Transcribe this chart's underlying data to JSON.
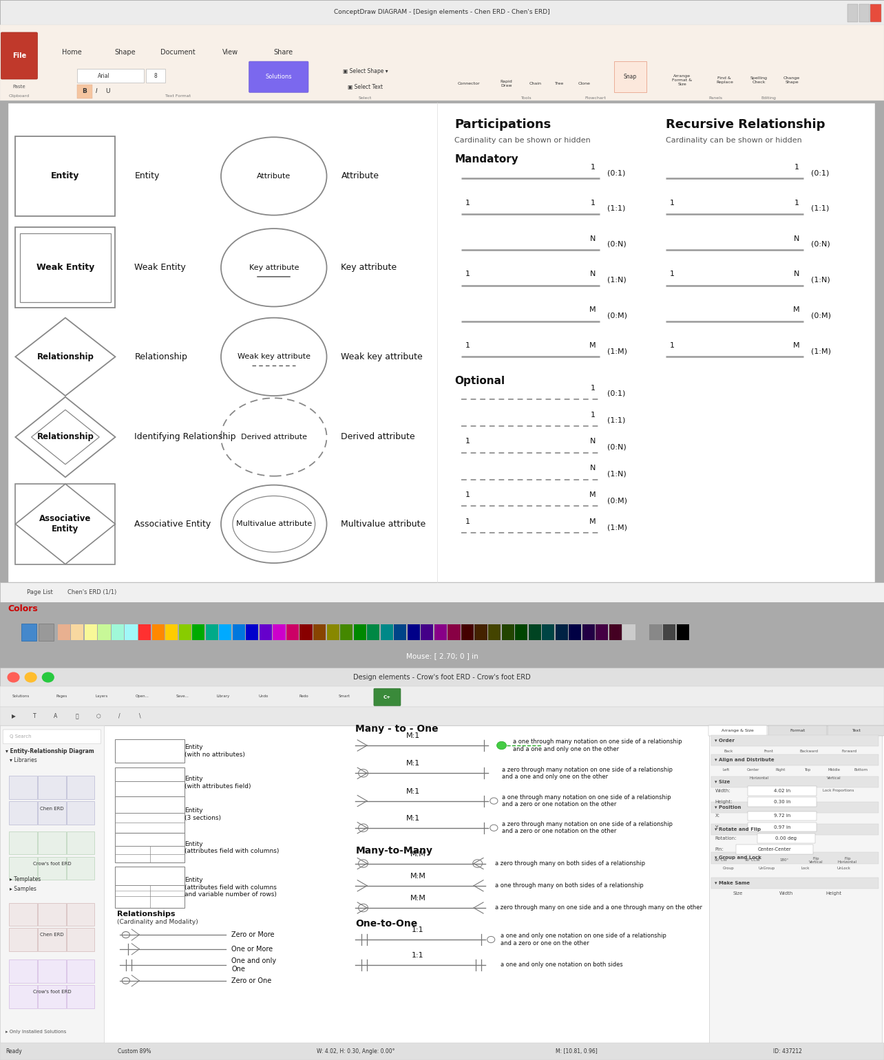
{
  "title_top": "ConceptDraw DIAGRAM - [Design elements - Chen ERD - Chen's ERD]",
  "section1_title": "Participations",
  "section1_subtitle": "Cardinality can be shown or hidden",
  "section2_title": "Recursive Relationship",
  "section2_subtitle": "Cardinality can be shown or hidden",
  "mandatory_label": "Mandatory",
  "optional_label": "Optional",
  "page_label": "Page List",
  "page_name": "Chen's ERD (1/1)",
  "mouse_text": "Mouse: [ 2.70; 0 ] in",
  "colors_label": "Colors",
  "colors_label_color": "#cc0000",
  "second_panel_title": "Design elements - Crow's foot ERD - Crow's foot ERD",
  "bg_top": "#c8c8c8",
  "bg_bottom": "#aaaaaa",
  "toolbar_bg": "#f5ede4",
  "title_bar_bg": "#eeeeee",
  "main_bg": "#ffffff",
  "statusbar_color": "#cc3300",
  "entity_labels": [
    "Entity",
    "Weak Entity",
    "Relationship",
    "Identifying Relationship",
    "Associative Entity"
  ],
  "attr_labels": [
    "Attribute",
    "Key attribute",
    "Weak key attribute",
    "Derived attribute",
    "Multivalue attribute"
  ],
  "mandatory_items": [
    {
      "l1": "",
      "l2": "1",
      "note": "(0:1)"
    },
    {
      "l1": "1",
      "l2": "1",
      "note": "(1:1)"
    },
    {
      "l1": "",
      "l2": "N",
      "note": "(0:N)"
    },
    {
      "l1": "1",
      "l2": "N",
      "note": "(1:N)"
    },
    {
      "l1": "",
      "l2": "M",
      "note": "(0:M)"
    },
    {
      "l1": "1",
      "l2": "M",
      "note": "(1:M)"
    }
  ],
  "optional_items": [
    {
      "l1": "",
      "l2": "1",
      "note": "(0:1)"
    },
    {
      "l1": "",
      "l2": "1",
      "note": "(1:1)"
    },
    {
      "l1": "1",
      "l2": "N",
      "note": "(0:N)"
    },
    {
      "l1": "",
      "l2": "N",
      "note": "(1:N)"
    },
    {
      "l1": "1",
      "l2": "M",
      "note": "(0:M)"
    },
    {
      "l1": "1",
      "l2": "M",
      "note": "(1:M)"
    }
  ],
  "recursive_items": [
    {
      "l1": "",
      "l2": "1",
      "note": "(0:1)"
    },
    {
      "l1": "1",
      "l2": "1",
      "note": "(1:1)"
    },
    {
      "l1": "",
      "l2": "N",
      "note": "(0:N)"
    },
    {
      "l1": "1",
      "l2": "N",
      "note": "(1:N)"
    },
    {
      "l1": "",
      "l2": "M",
      "note": "(0:M)"
    },
    {
      "l1": "1",
      "l2": "M",
      "note": "(1:M)"
    }
  ],
  "crow_entity_labels": [
    "Entity\n(with no attributes)",
    "Entity\n(with attributes field)",
    "Entity\n(3 sections)",
    "Entity\n(attributes field with columns)",
    "Entity\n(attributes field with columns\nand variable number of rows)"
  ],
  "many_to_one_descs": [
    "a one through many notation on one side of a relationship\nand a one and only one on the other",
    "a zero through many notation on one side of a relationship\nand a one and only one on the other",
    "a one through many notation on one side of a relationship\nand a zero or one notation on the other",
    "a zero through many notation on one side of a relationship\nand a zero or one notation on the other"
  ],
  "many_to_many_descs": [
    "a zero through many on both sides of a relationship",
    "a one through many on both sides of a relationship",
    "a zero through many on one side and a one through many on the other"
  ],
  "one_to_one_descs": [
    "a one and only one notation on one side of a relationship\nand a zero or one on the other",
    "a one and only one notation on both sides"
  ],
  "crow_notations": [
    "Zero or More",
    "One or More",
    "One and only\nOne",
    "Zero or One"
  ],
  "color_swatches": [
    "#e8b090",
    "#f8d8a0",
    "#f8f898",
    "#c8f898",
    "#a0f8d8",
    "#a0f8f8",
    "#ff3030",
    "#ff8800",
    "#ffcc00",
    "#88cc00",
    "#00aa00",
    "#00aa88",
    "#00aaff",
    "#0077dd",
    "#0000cc",
    "#6600cc",
    "#cc00cc",
    "#cc0066",
    "#880000",
    "#884400",
    "#888800",
    "#448800",
    "#008800",
    "#008844",
    "#008888",
    "#004488",
    "#000088",
    "#440088",
    "#880088",
    "#880044",
    "#440000",
    "#442200",
    "#444400",
    "#224400",
    "#004400",
    "#004422",
    "#004444",
    "#002244",
    "#000044",
    "#220044",
    "#440044",
    "#440022",
    "#cccccc",
    "#aaaaaa",
    "#888888",
    "#444444",
    "#000000"
  ]
}
